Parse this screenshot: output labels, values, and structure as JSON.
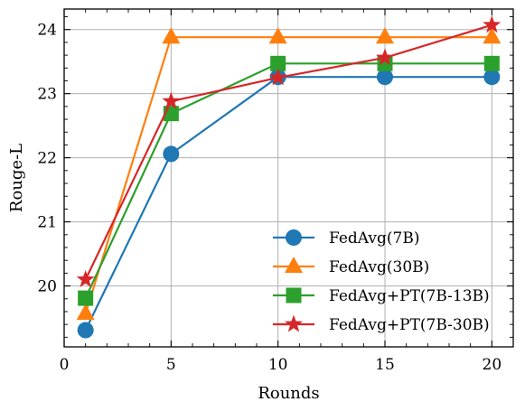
{
  "chart_data": {
    "type": "line",
    "title": "",
    "xlabel": "Rounds",
    "ylabel": "Rouge-L",
    "xlim": [
      0,
      21
    ],
    "ylim": [
      19.05,
      24.32
    ],
    "xticks": [
      0,
      5,
      10,
      15,
      20
    ],
    "yticks": [
      20,
      21,
      22,
      23,
      24
    ],
    "grid": true,
    "legend_position": "lower-right",
    "x": [
      1,
      5,
      10,
      15,
      20
    ],
    "series": [
      {
        "name": "FedAvg(7B)",
        "color": "#1f77b4",
        "marker": "circle",
        "values": [
          19.31,
          22.06,
          23.26,
          23.26,
          23.26
        ]
      },
      {
        "name": "FedAvg(30B)",
        "color": "#ff7f0e",
        "marker": "triangle",
        "values": [
          19.57,
          23.88,
          23.88,
          23.88,
          23.88
        ]
      },
      {
        "name": "FedAvg+PT(7B-13B)",
        "color": "#2ca02c",
        "marker": "square",
        "values": [
          19.81,
          22.69,
          23.47,
          23.47,
          23.47
        ]
      },
      {
        "name": "FedAvg+PT(7B-30B)",
        "color": "#d62728",
        "marker": "star",
        "values": [
          20.1,
          22.88,
          23.25,
          23.56,
          24.07
        ]
      }
    ]
  }
}
